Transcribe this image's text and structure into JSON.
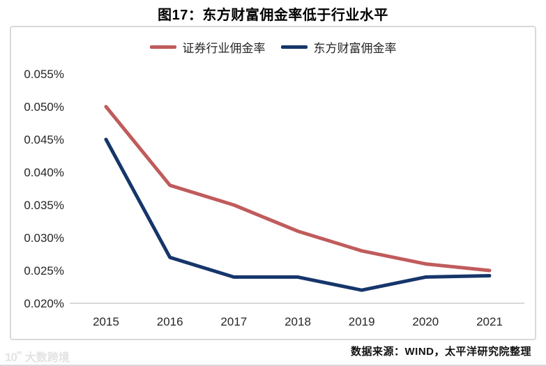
{
  "title": "图17：东方财富佣金率低于行业水平",
  "source_note": "数据来源：WIND，太平洋研究院整理",
  "watermark": {
    "logo": "10",
    "logo_sup": "⁰⁰",
    "name": "大数跨境"
  },
  "colors": {
    "industry_line": "#c05b5c",
    "eastmoney_line": "#16366b",
    "axis_line": "#d9d9d9",
    "box_border": "#d9d9d9",
    "tick_text": "#262626"
  },
  "chart_data": {
    "type": "line",
    "title": "图17：东方财富佣金率低于行业水平",
    "x": [
      "2015",
      "2016",
      "2017",
      "2018",
      "2019",
      "2020",
      "2021"
    ],
    "series": [
      {
        "name": "证券行业佣金率",
        "color": "#c05b5c",
        "values": [
          0.05,
          0.038,
          0.035,
          0.031,
          0.028,
          0.026,
          0.025
        ]
      },
      {
        "name": "东方财富佣金率",
        "color": "#16366b",
        "values": [
          0.045,
          0.027,
          0.024,
          0.024,
          0.022,
          0.024,
          0.0242
        ]
      }
    ],
    "unit": "%",
    "ylim": [
      0.02,
      0.055
    ],
    "yticks": [
      0.055,
      0.05,
      0.045,
      0.04,
      0.035,
      0.03,
      0.025,
      0.02
    ],
    "ytick_labels": [
      "0.055%",
      "0.050%",
      "0.045%",
      "0.040%",
      "0.035%",
      "0.030%",
      "0.025%",
      "0.020%"
    ],
    "xlabel": "",
    "ylabel": "",
    "grid": false,
    "legend_position": "top"
  }
}
